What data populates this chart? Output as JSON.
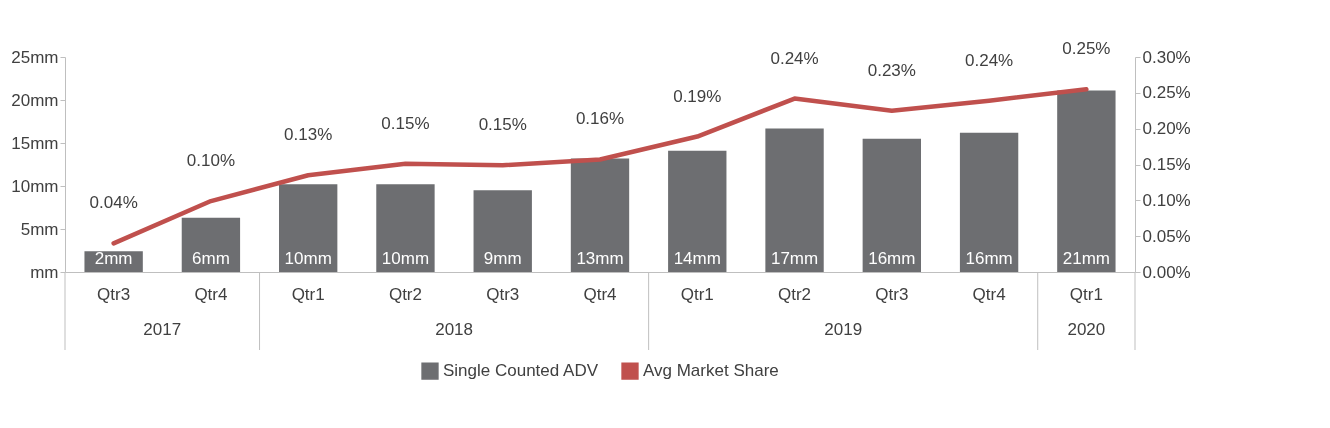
{
  "chart_data": {
    "type": "bar",
    "categories": [
      "Qtr3",
      "Qtr4",
      "Qtr1",
      "Qtr2",
      "Qtr3",
      "Qtr4",
      "Qtr1",
      "Qtr2",
      "Qtr3",
      "Qtr4",
      "Qtr1"
    ],
    "annotations": [
      "2017",
      "2018",
      "2019",
      "2020"
    ],
    "series": [
      {
        "name": "Single Counted ADV",
        "type": "bar",
        "color": "#6d6e71",
        "values": [
          2.4,
          6.3,
          10.2,
          10.2,
          9.5,
          13.2,
          14.1,
          16.7,
          15.5,
          16.2,
          21.1
        ],
        "value_labels": [
          "2mm",
          "6mm",
          "10mm",
          "10mm",
          "9mm",
          "13mm",
          "14mm",
          "17mm",
          "16mm",
          "16mm",
          "21mm"
        ]
      },
      {
        "name": "Avg Market Share",
        "type": "line",
        "axis": "y2",
        "color": "#c0504d",
        "values": [
          0.04,
          0.099,
          0.135,
          0.151,
          0.149,
          0.157,
          0.189,
          0.242,
          0.225,
          0.239,
          0.255
        ],
        "value_labels": [
          "0.04%",
          "0.10%",
          "0.13%",
          "0.15%",
          "0.15%",
          "0.16%",
          "0.19%",
          "0.24%",
          "0.23%",
          "0.24%",
          "0.25%"
        ]
      }
    ],
    "ylim": [
      0,
      25
    ],
    "yticks": [
      {
        "value": 0,
        "label": "mm"
      },
      {
        "value": 5,
        "label": "5mm"
      },
      {
        "value": 10,
        "label": "10mm"
      },
      {
        "value": 15,
        "label": "15mm"
      },
      {
        "value": 20,
        "label": "20mm"
      },
      {
        "value": 25,
        "label": "25mm"
      }
    ],
    "y2lim": [
      0,
      0.3
    ],
    "y2ticks": [
      {
        "value": 0,
        "label": "0.00%"
      },
      {
        "value": 0.05,
        "label": "0.05%"
      },
      {
        "value": 0.1,
        "label": "0.10%"
      },
      {
        "value": 0.15,
        "label": "0.15%"
      },
      {
        "value": 0.2,
        "label": "0.20%"
      },
      {
        "value": 0.25,
        "label": "0.25%"
      },
      {
        "value": 0.3,
        "label": "0.30%"
      }
    ],
    "grid": false,
    "legend": "bottom"
  }
}
